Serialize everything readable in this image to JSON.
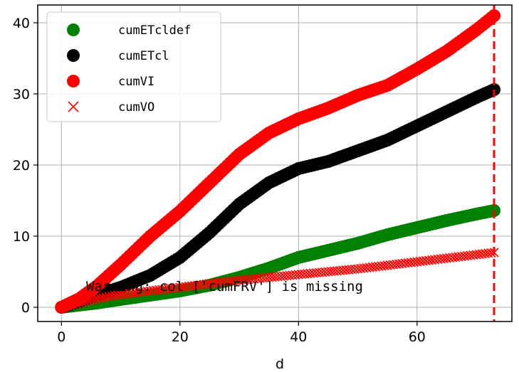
{
  "chart_data": {
    "type": "scatter",
    "xlabel": "d",
    "ylabel": "",
    "xlim": [
      -4,
      76
    ],
    "ylim": [
      -2,
      42.5
    ],
    "xticks": [
      0,
      20,
      40,
      60
    ],
    "yticks": [
      0,
      10,
      20,
      30,
      40
    ],
    "grid": true,
    "legend_position": "top-left",
    "vline": {
      "x": 73,
      "color": "#ff0000",
      "style": "dashed"
    },
    "annotation": "Warning: col ['cumFRV'] is missing",
    "series": [
      {
        "name": "cumETcldef",
        "color": "#008000",
        "marker": "circle",
        "x": [
          0,
          3,
          6,
          10,
          15,
          20,
          25,
          30,
          35,
          40,
          45,
          50,
          55,
          60,
          65,
          70,
          73
        ],
        "y": [
          0,
          0.3,
          0.6,
          1.1,
          1.7,
          2.3,
          3.1,
          4.2,
          5.5,
          7.0,
          8.0,
          9.0,
          10.2,
          11.2,
          12.2,
          13.1,
          13.6
        ]
      },
      {
        "name": "cumETcl",
        "color": "#000000",
        "marker": "circle",
        "x": [
          0,
          3,
          6,
          10,
          15,
          20,
          25,
          30,
          35,
          40,
          45,
          50,
          55,
          60,
          65,
          70,
          73
        ],
        "y": [
          0,
          0.8,
          1.8,
          2.8,
          4.5,
          7.0,
          10.5,
          14.5,
          17.5,
          19.5,
          20.5,
          22.0,
          23.5,
          25.5,
          27.5,
          29.5,
          30.6
        ]
      },
      {
        "name": "cumVI",
        "color": "#ff0000",
        "marker": "circle",
        "x": [
          0,
          3,
          6,
          10,
          15,
          20,
          25,
          30,
          35,
          40,
          45,
          50,
          55,
          60,
          65,
          70,
          73
        ],
        "y": [
          0,
          1.2,
          3.0,
          6.0,
          10.0,
          13.5,
          17.5,
          21.5,
          24.5,
          26.5,
          28.0,
          29.8,
          31.2,
          33.5,
          36.0,
          39.0,
          41.0
        ]
      },
      {
        "name": "cumVO",
        "color": "#ff0000",
        "marker": "x",
        "x": [
          0,
          3,
          6,
          10,
          15,
          20,
          25,
          30,
          35,
          40,
          45,
          50,
          55,
          60,
          65,
          70,
          73
        ],
        "y": [
          0,
          0.6,
          1.2,
          1.8,
          2.3,
          2.8,
          3.3,
          3.8,
          4.2,
          4.6,
          5.0,
          5.4,
          5.9,
          6.4,
          6.9,
          7.4,
          7.7
        ]
      }
    ]
  }
}
